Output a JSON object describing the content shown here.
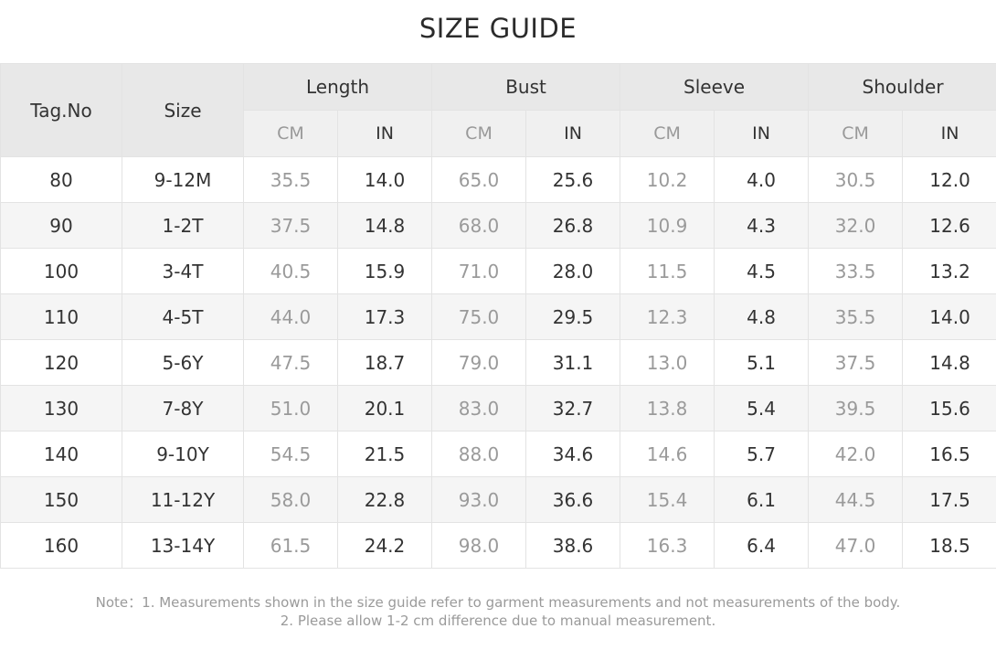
{
  "title": "SIZE GUIDE",
  "headers": {
    "tag": "Tag.No",
    "size": "Size",
    "groups": [
      "Length",
      "Bust",
      "Sleeve",
      "Shoulder"
    ],
    "unit_cm": "CM",
    "unit_in": "IN"
  },
  "rows": [
    {
      "tag": "80",
      "size": "9-12M",
      "values": [
        "35.5",
        "14.0",
        "65.0",
        "25.6",
        "10.2",
        "4.0",
        "30.5",
        "12.0"
      ]
    },
    {
      "tag": "90",
      "size": "1-2T",
      "values": [
        "37.5",
        "14.8",
        "68.0",
        "26.8",
        "10.9",
        "4.3",
        "32.0",
        "12.6"
      ]
    },
    {
      "tag": "100",
      "size": "3-4T",
      "values": [
        "40.5",
        "15.9",
        "71.0",
        "28.0",
        "11.5",
        "4.5",
        "33.5",
        "13.2"
      ]
    },
    {
      "tag": "110",
      "size": "4-5T",
      "values": [
        "44.0",
        "17.3",
        "75.0",
        "29.5",
        "12.3",
        "4.8",
        "35.5",
        "14.0"
      ]
    },
    {
      "tag": "120",
      "size": "5-6Y",
      "values": [
        "47.5",
        "18.7",
        "79.0",
        "31.1",
        "13.0",
        "5.1",
        "37.5",
        "14.8"
      ]
    },
    {
      "tag": "130",
      "size": "7-8Y",
      "values": [
        "51.0",
        "20.1",
        "83.0",
        "32.7",
        "13.8",
        "5.4",
        "39.5",
        "15.6"
      ]
    },
    {
      "tag": "140",
      "size": "9-10Y",
      "values": [
        "54.5",
        "21.5",
        "88.0",
        "34.6",
        "14.6",
        "5.7",
        "42.0",
        "16.5"
      ]
    },
    {
      "tag": "150",
      "size": "11-12Y",
      "values": [
        "58.0",
        "22.8",
        "93.0",
        "36.6",
        "15.4",
        "6.1",
        "44.5",
        "17.5"
      ]
    },
    {
      "tag": "160",
      "size": "13-14Y",
      "values": [
        "61.5",
        "24.2",
        "98.0",
        "38.6",
        "16.3",
        "6.4",
        "47.0",
        "18.5"
      ]
    }
  ],
  "notes": {
    "line1": "Note：1. Measurements shown in the size guide refer to garment measurements and not measurements of the body.",
    "line2": "2. Please allow 1-2 cm difference due to manual measurement."
  }
}
